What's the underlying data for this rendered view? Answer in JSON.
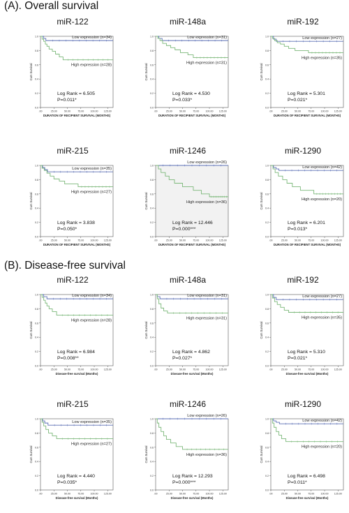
{
  "sections": [
    {
      "title": "(A). Overall survival",
      "ylabel": "Cum Survival",
      "xlabel": "DURATION OF RECIPIENT SURVIVAL (MONTHS)",
      "x_ticks": [
        ".00",
        "25.00",
        "50.00",
        "75.00",
        "100.00",
        "125.00"
      ],
      "y_ticks": [
        "1.0",
        "0.8",
        "0.6",
        "0.4",
        "0.2",
        "0.0"
      ]
    },
    {
      "title": "(B). Disease-free survival",
      "ylabel": "Cum Survival",
      "xlabel": "Disease-free survival (Months)",
      "x_ticks": [
        ".00",
        "25.00",
        "50.00",
        "75.00",
        "100.00",
        "125.00"
      ],
      "y_ticks": [
        "1.0",
        "0.8",
        "0.6",
        "0.4",
        "0.2",
        "0.0"
      ]
    }
  ],
  "colors": {
    "low": "#5b6fb5",
    "high": "#7cb87a",
    "axis": "#555555"
  },
  "chart_data": [
    {
      "type": "line",
      "section": 0,
      "title": "miR-122",
      "xlim": [
        0,
        135
      ],
      "ylim": [
        0,
        1.0
      ],
      "series": [
        {
          "name": "Low expression (n=34)",
          "x": [
            0,
            6,
            10,
            135
          ],
          "y": [
            1.0,
            0.97,
            0.94,
            0.94
          ]
        },
        {
          "name": "High expression (n=28)",
          "x": [
            0,
            3,
            6,
            9,
            12,
            16,
            22,
            28,
            35,
            42,
            135
          ],
          "y": [
            1.0,
            0.96,
            0.93,
            0.89,
            0.86,
            0.82,
            0.79,
            0.75,
            0.71,
            0.67,
            0.67
          ]
        }
      ],
      "annotation": [
        "Log Rank = 6.505",
        "P=0.011*"
      ]
    },
    {
      "type": "line",
      "section": 0,
      "title": "miR-148a",
      "xlim": [
        0,
        135
      ],
      "ylim": [
        0,
        1.0
      ],
      "series": [
        {
          "name": "Low expression (n=31)",
          "x": [
            0,
            6,
            12,
            135
          ],
          "y": [
            1.0,
            0.97,
            0.94,
            0.94
          ]
        },
        {
          "name": "High expression (n=31)",
          "x": [
            0,
            4,
            8,
            13,
            20,
            28,
            36,
            46,
            60,
            70,
            135
          ],
          "y": [
            1.0,
            0.97,
            0.94,
            0.9,
            0.87,
            0.84,
            0.81,
            0.77,
            0.74,
            0.7,
            0.7
          ]
        }
      ],
      "annotation": [
        "Log Rank = 4.530",
        "P=0.033*"
      ]
    },
    {
      "type": "line",
      "section": 0,
      "title": "miR-192",
      "xlim": [
        0,
        135
      ],
      "ylim": [
        0,
        1.0
      ],
      "series": [
        {
          "name": "Low expression (n=27)",
          "x": [
            0,
            5,
            10,
            135
          ],
          "y": [
            1.0,
            0.96,
            0.93,
            0.93
          ]
        },
        {
          "name": "High expression (n=35)",
          "x": [
            0,
            3,
            7,
            12,
            18,
            25,
            33,
            45,
            70,
            135
          ],
          "y": [
            1.0,
            0.97,
            0.94,
            0.91,
            0.89,
            0.86,
            0.83,
            0.8,
            0.77,
            0.77
          ]
        }
      ],
      "annotation": [
        "Log Rank = 5.301",
        "P=0.021*"
      ]
    },
    {
      "type": "line",
      "section": 0,
      "title": "miR-215",
      "xlim": [
        0,
        135
      ],
      "ylim": [
        0,
        1.0
      ],
      "series": [
        {
          "name": "Low expression (n=35)",
          "x": [
            0,
            4,
            8,
            13,
            135
          ],
          "y": [
            1.0,
            0.97,
            0.94,
            0.91,
            0.91
          ]
        },
        {
          "name": "High expression (n=27)",
          "x": [
            0,
            3,
            7,
            12,
            18,
            25,
            35,
            45,
            70,
            135
          ],
          "y": [
            1.0,
            0.96,
            0.93,
            0.89,
            0.85,
            0.81,
            0.78,
            0.74,
            0.7,
            0.7
          ]
        }
      ],
      "annotation": [
        "Log Rank = 3.838",
        "P=0.050*"
      ]
    },
    {
      "type": "line",
      "section": 0,
      "title": "miR-1246",
      "xlim": [
        0,
        135
      ],
      "ylim": [
        0,
        1.0
      ],
      "series": [
        {
          "name": "Low expression (n=26)",
          "x": [
            0,
            135
          ],
          "y": [
            1.0,
            1.0
          ]
        },
        {
          "name": "High expression (n=36)",
          "x": [
            0,
            5,
            10,
            18,
            25,
            35,
            50,
            70,
            85,
            100,
            135
          ],
          "y": [
            1.0,
            0.95,
            0.9,
            0.85,
            0.8,
            0.75,
            0.7,
            0.65,
            0.6,
            0.56,
            0.56
          ]
        }
      ],
      "annotation": [
        "Log Rank = 12.446",
        "P=0.000***"
      ]
    },
    {
      "type": "line",
      "section": 0,
      "title": "miR-1290",
      "xlim": [
        0,
        135
      ],
      "ylim": [
        0,
        1.0
      ],
      "series": [
        {
          "name": "Low expression (n=42)",
          "x": [
            0,
            5,
            10,
            15,
            135
          ],
          "y": [
            1.0,
            0.97,
            0.95,
            0.93,
            0.93
          ]
        },
        {
          "name": "High expression (n=20)",
          "x": [
            0,
            4,
            8,
            14,
            22,
            30,
            40,
            55,
            80,
            135
          ],
          "y": [
            1.0,
            0.95,
            0.9,
            0.85,
            0.8,
            0.75,
            0.7,
            0.65,
            0.6,
            0.6
          ]
        }
      ],
      "annotation": [
        "Log Rank = 6.201",
        "P=0.013*"
      ]
    },
    {
      "type": "line",
      "section": 1,
      "title": "miR-122",
      "xlim": [
        0,
        135
      ],
      "ylim": [
        0,
        1.0
      ],
      "series": [
        {
          "name": "Low expression (n=34)",
          "x": [
            0,
            6,
            12,
            135
          ],
          "y": [
            1.0,
            0.97,
            0.94,
            0.94
          ]
        },
        {
          "name": "High expression (n=28)",
          "x": [
            0,
            3,
            6,
            9,
            12,
            16,
            22,
            30,
            135
          ],
          "y": [
            1.0,
            0.96,
            0.92,
            0.88,
            0.84,
            0.8,
            0.76,
            0.71,
            0.71
          ]
        }
      ],
      "annotation": [
        "Log Rank = 6.984",
        "P=0.008**"
      ]
    },
    {
      "type": "line",
      "section": 1,
      "title": "miR-148a",
      "xlim": [
        0,
        135
      ],
      "ylim": [
        0,
        1.0
      ],
      "series": [
        {
          "name": "Low expression (n=31)",
          "x": [
            0,
            3,
            8,
            135
          ],
          "y": [
            1.0,
            0.97,
            0.94,
            0.94
          ]
        },
        {
          "name": "High expression (n=31)",
          "x": [
            0,
            3,
            6,
            10,
            15,
            22,
            135
          ],
          "y": [
            1.0,
            0.94,
            0.87,
            0.81,
            0.77,
            0.74,
            0.74
          ]
        }
      ],
      "annotation": [
        "Log Rank = 4.862",
        "P=0.027*"
      ]
    },
    {
      "type": "line",
      "section": 1,
      "title": "miR-192",
      "xlim": [
        0,
        135
      ],
      "ylim": [
        0,
        1.0
      ],
      "series": [
        {
          "name": "Low expression (n=27)",
          "x": [
            0,
            5,
            10,
            135
          ],
          "y": [
            1.0,
            0.96,
            0.93,
            0.93
          ]
        },
        {
          "name": "High expression (n=35)",
          "x": [
            0,
            3,
            7,
            12,
            18,
            25,
            33,
            135
          ],
          "y": [
            1.0,
            0.95,
            0.9,
            0.86,
            0.82,
            0.78,
            0.75,
            0.75
          ]
        }
      ],
      "annotation": [
        "Log Rank = 5.310",
        "P=0.021*"
      ]
    },
    {
      "type": "line",
      "section": 1,
      "title": "miR-215",
      "xlim": [
        0,
        135
      ],
      "ylim": [
        0,
        1.0
      ],
      "series": [
        {
          "name": "Low expression (n=35)",
          "x": [
            0,
            4,
            8,
            14,
            135
          ],
          "y": [
            1.0,
            0.97,
            0.94,
            0.91,
            0.91
          ]
        },
        {
          "name": "High expression (n=27)",
          "x": [
            0,
            3,
            6,
            10,
            15,
            22,
            30,
            135
          ],
          "y": [
            1.0,
            0.95,
            0.9,
            0.85,
            0.8,
            0.76,
            0.72,
            0.72
          ]
        }
      ],
      "annotation": [
        "Log Rank = 4.440",
        "P=0.035*"
      ]
    },
    {
      "type": "line",
      "section": 1,
      "title": "miR-1246",
      "xlim": [
        0,
        135
      ],
      "ylim": [
        0,
        1.0
      ],
      "series": [
        {
          "name": "Low expression (n=26)",
          "x": [
            0,
            135
          ],
          "y": [
            1.0,
            1.0
          ]
        },
        {
          "name": "High expression (n=36)",
          "x": [
            0,
            3,
            6,
            10,
            15,
            20,
            28,
            38,
            50,
            135
          ],
          "y": [
            1.0,
            0.94,
            0.88,
            0.82,
            0.76,
            0.71,
            0.66,
            0.61,
            0.57,
            0.57
          ]
        }
      ],
      "annotation": [
        "Log Rank = 12.293",
        "P=0.000***"
      ]
    },
    {
      "type": "line",
      "section": 1,
      "title": "miR-1290",
      "xlim": [
        0,
        135
      ],
      "ylim": [
        0,
        1.0
      ],
      "series": [
        {
          "name": "Low expression (n=42)",
          "x": [
            0,
            5,
            10,
            16,
            135
          ],
          "y": [
            1.0,
            0.97,
            0.95,
            0.93,
            0.93
          ]
        },
        {
          "name": "High expression (n=20)",
          "x": [
            0,
            3,
            6,
            10,
            15,
            20,
            28,
            135
          ],
          "y": [
            1.0,
            0.94,
            0.88,
            0.82,
            0.77,
            0.72,
            0.68,
            0.68
          ]
        }
      ],
      "annotation": [
        "Log Rank = 6.498",
        "P=0.011*"
      ]
    }
  ]
}
